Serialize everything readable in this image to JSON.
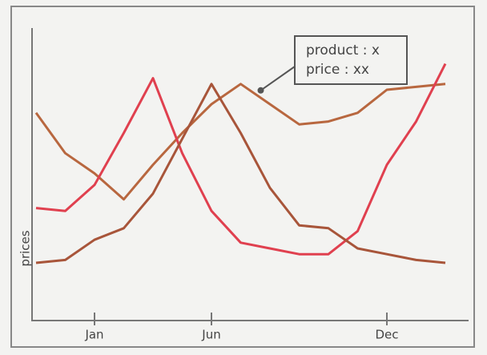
{
  "chart_data": {
    "type": "line",
    "categories": [
      null,
      null,
      "Jan",
      null,
      null,
      null,
      "Jun",
      null,
      null,
      null,
      null,
      null,
      "Dec",
      null,
      null
    ],
    "series": [
      {
        "color": "#b8673f",
        "values": [
          72,
          58,
          51,
          42,
          54,
          65,
          75,
          82,
          75,
          68,
          69,
          72,
          80,
          81,
          82
        ]
      },
      {
        "color": "#e0404f",
        "values": [
          39,
          38,
          47,
          65,
          84,
          58,
          38,
          27,
          25,
          23,
          23,
          31,
          54,
          69,
          89
        ]
      },
      {
        "color": "#a8553a",
        "values": [
          20,
          21,
          28,
          32,
          44,
          63,
          82,
          65,
          46,
          33,
          32,
          25,
          23,
          21,
          20
        ]
      }
    ],
    "ylim": [
      0,
      100
    ],
    "y_label": "prices",
    "annotation": {
      "lines": [
        "product : x",
        "price : xx"
      ],
      "series": 0,
      "index": 7
    }
  }
}
